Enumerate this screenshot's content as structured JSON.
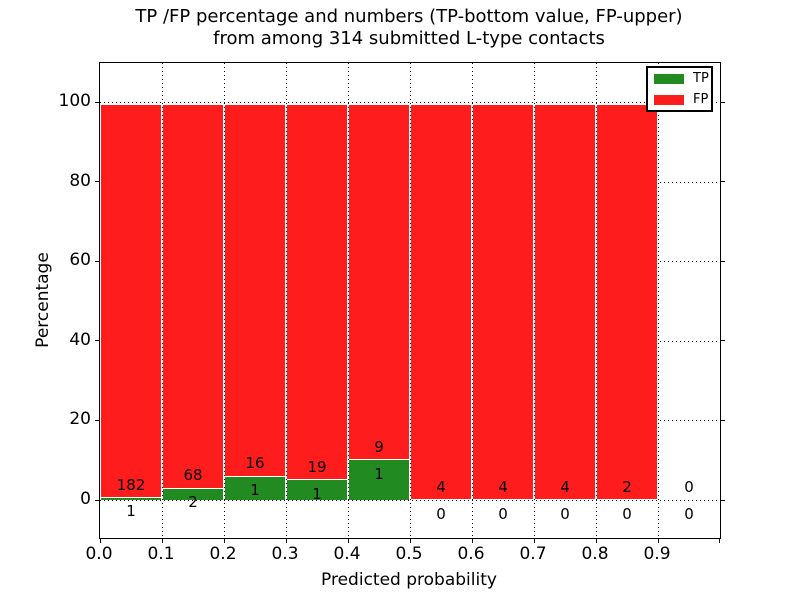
{
  "chart_data": {
    "type": "bar",
    "stacked": true,
    "title": "TP /FP percentage and numbers (TP-bottom value, FP-upper)\nfrom among 314 submitted L-type contacts",
    "title_lines": [
      "TP /FP percentage and numbers (TP-bottom value, FP-upper)",
      "from among 314 submitted L-type contacts"
    ],
    "xlabel": "Predicted probability",
    "ylabel": "Percentage",
    "xlim": [
      0.0,
      1.0
    ],
    "ylim": [
      -10,
      110
    ],
    "xtick_labels": [
      "0.0",
      "0.1",
      "0.2",
      "0.3",
      "0.4",
      "0.5",
      "0.6",
      "0.7",
      "0.8",
      "0.9"
    ],
    "ytick_values": [
      0,
      20,
      40,
      60,
      80,
      100
    ],
    "grid_style": "dotted",
    "total_submitted": 314,
    "colors": {
      "tp": "#218a21",
      "fp": "#ff1c1c",
      "bar_edge": "#ffffff",
      "grid": "#000000",
      "text": "#000000"
    },
    "legend": {
      "position": "upper-right",
      "entries": [
        {
          "label": "TP",
          "color": "#218a21"
        },
        {
          "label": "FP",
          "color": "#ff1c1c"
        }
      ]
    },
    "bins": [
      {
        "range": [
          0.0,
          0.1
        ],
        "tp": 1,
        "fp": 182
      },
      {
        "range": [
          0.1,
          0.2
        ],
        "tp": 2,
        "fp": 68
      },
      {
        "range": [
          0.2,
          0.3
        ],
        "tp": 1,
        "fp": 16
      },
      {
        "range": [
          0.3,
          0.4
        ],
        "tp": 1,
        "fp": 19
      },
      {
        "range": [
          0.4,
          0.5
        ],
        "tp": 1,
        "fp": 9
      },
      {
        "range": [
          0.5,
          0.6
        ],
        "tp": 0,
        "fp": 4
      },
      {
        "range": [
          0.6,
          0.7
        ],
        "tp": 0,
        "fp": 4
      },
      {
        "range": [
          0.7,
          0.8
        ],
        "tp": 0,
        "fp": 4
      },
      {
        "range": [
          0.8,
          0.9
        ],
        "tp": 0,
        "fp": 2
      },
      {
        "range": [
          0.9,
          1.0
        ],
        "tp": 0,
        "fp": 0
      }
    ]
  }
}
